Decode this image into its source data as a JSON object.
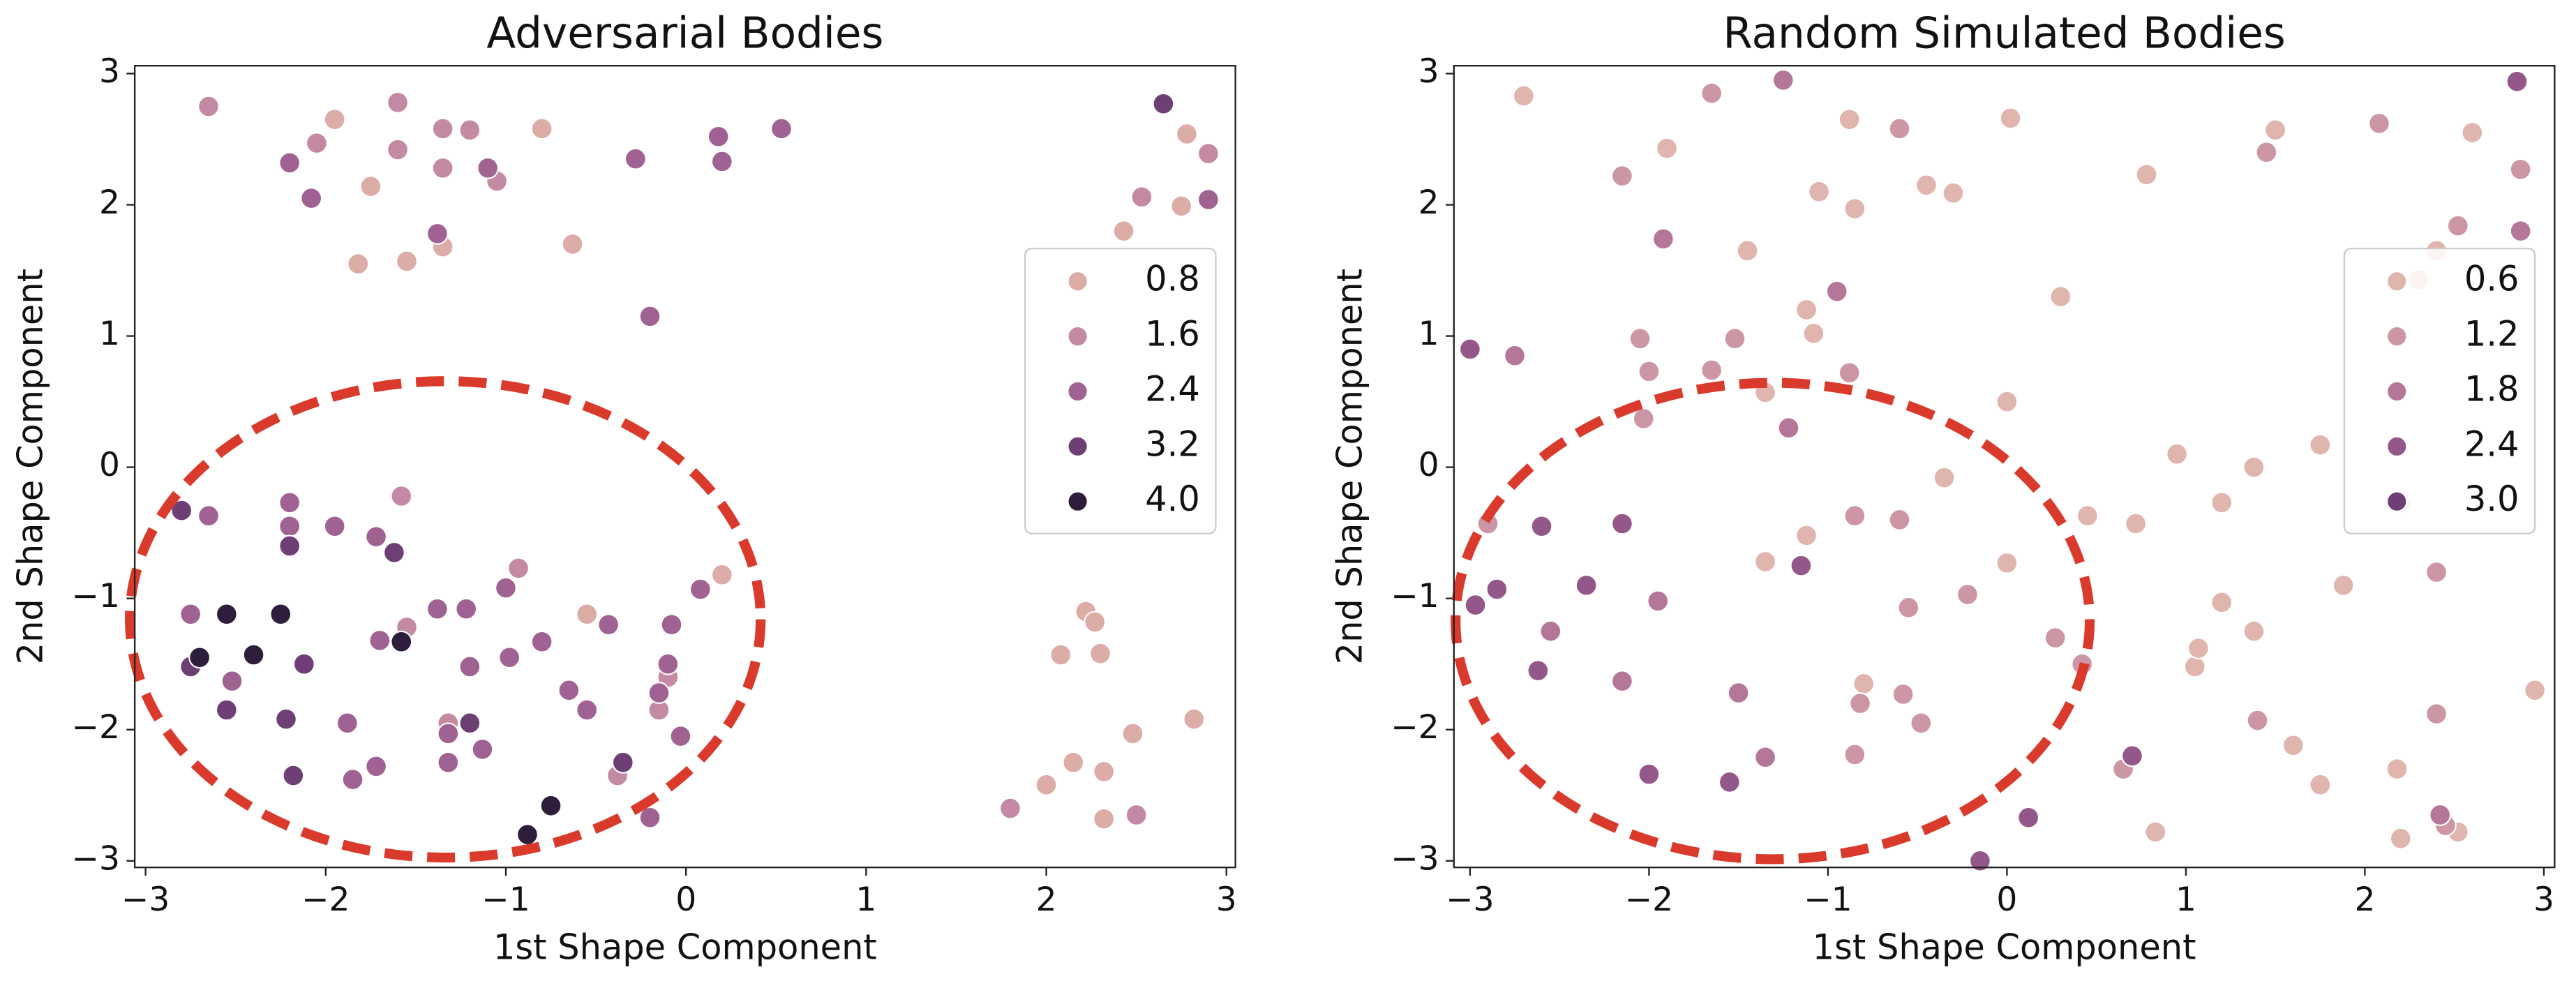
{
  "chart_data": [
    {
      "type": "scatter",
      "title": "Adversarial Bodies",
      "x_label": "1st Shape Component",
      "y_label": "2nd Shape Component",
      "xlim": [
        -3.06,
        3.05
      ],
      "ylim": [
        -3.05,
        3.06
      ],
      "xticks": [
        {
          "value": -3,
          "label": "−3"
        },
        {
          "value": -2,
          "label": "−2"
        },
        {
          "value": -1,
          "label": "−1"
        },
        0,
        1,
        2,
        3
      ],
      "yticks": [
        {
          "value": -3,
          "label": "−3"
        },
        {
          "value": -2,
          "label": "−2"
        },
        {
          "value": -1,
          "label": "−1"
        },
        0,
        1,
        2,
        3
      ],
      "legend": "center right",
      "grid": false,
      "series": [
        {
          "name": "0.8",
          "color": "#dcaca7",
          "x": [
            -1.95,
            -1.75,
            -0.8,
            -1.82,
            -1.55,
            -1.35,
            -0.63,
            2.78,
            2.75,
            2.43,
            -0.55,
            0.2,
            2.0,
            2.08,
            2.15,
            2.22,
            2.27,
            2.3,
            2.32,
            2.32,
            2.48,
            2.82
          ],
          "values": [
            2.65,
            2.14,
            2.58,
            1.55,
            1.57,
            1.68,
            1.7,
            2.54,
            1.99,
            1.8,
            -1.12,
            -0.82,
            -2.42,
            -1.43,
            -2.25,
            -1.1,
            -1.18,
            -1.42,
            -2.32,
            -2.68,
            -2.03,
            -1.92
          ]
        },
        {
          "name": "1.6",
          "color": "#c48aa3",
          "x": [
            -2.65,
            -2.05,
            -1.6,
            -1.6,
            -1.35,
            -1.35,
            -1.2,
            -1.05,
            2.9,
            2.53,
            -1.58,
            -1.55,
            -0.93,
            -1.32,
            -0.38,
            -0.15,
            -0.1,
            1.8,
            2.5
          ],
          "values": [
            2.75,
            2.47,
            2.78,
            2.42,
            2.58,
            2.28,
            2.57,
            2.18,
            2.39,
            2.06,
            -0.22,
            -1.22,
            -0.77,
            -1.95,
            -2.35,
            -1.85,
            -1.6,
            -2.6,
            -2.65
          ]
        },
        {
          "name": "2.4",
          "color": "#a06292",
          "x": [
            -2.2,
            -2.08,
            -1.1,
            -0.28,
            0.18,
            0.2,
            0.53,
            -1.38,
            -0.2,
            2.9,
            -2.65,
            -2.2,
            -2.2,
            -1.95,
            -1.72,
            -2.75,
            -2.52,
            -1.88,
            -1.72,
            -1.85,
            -1.7,
            -1.38,
            -1.22,
            -1.0,
            -1.2,
            -0.98,
            -0.8,
            -1.32,
            -1.32,
            -1.13,
            -0.65,
            -0.55,
            -0.43,
            -0.2,
            -0.15,
            -0.1,
            -0.08,
            -0.03,
            0.08
          ],
          "values": [
            2.32,
            2.05,
            2.28,
            2.35,
            2.52,
            2.33,
            2.58,
            1.78,
            1.15,
            2.04,
            -0.37,
            -0.27,
            -0.45,
            -0.45,
            -0.53,
            -1.12,
            -1.63,
            -1.95,
            -2.28,
            -2.38,
            -1.32,
            -1.08,
            -1.08,
            -0.92,
            -1.52,
            -1.45,
            -1.33,
            -2.03,
            -2.25,
            -2.15,
            -1.7,
            -1.85,
            -1.2,
            -2.67,
            -1.72,
            -1.5,
            -1.2,
            -2.05,
            -0.93
          ]
        },
        {
          "name": "3.2",
          "color": "#6e3f75",
          "x": [
            2.65,
            -2.8,
            -2.2,
            -1.62,
            -2.75,
            -2.12,
            -2.55,
            -2.22,
            -2.18,
            -1.2,
            -0.35
          ],
          "values": [
            2.77,
            -0.33,
            -0.6,
            -0.65,
            -1.52,
            -1.5,
            -1.85,
            -1.92,
            -2.35,
            -1.95,
            -2.25
          ]
        },
        {
          "name": "4.0",
          "color": "#2e1e3b",
          "x": [
            -2.55,
            -2.25,
            -2.7,
            -2.4,
            -1.58,
            -0.75,
            -0.88
          ],
          "values": [
            -1.12,
            -1.12,
            -1.45,
            -1.43,
            -1.33,
            -2.58,
            -2.8
          ]
        }
      ]
    },
    {
      "type": "scatter",
      "title": "Random Simulated Bodies",
      "x_label": "1st Shape Component",
      "y_label": "2nd Shape Component",
      "xlim": [
        -3.09,
        3.06
      ],
      "ylim": [
        -3.05,
        3.06
      ],
      "xticks": [
        {
          "value": -3,
          "label": "−3"
        },
        {
          "value": -2,
          "label": "−2"
        },
        {
          "value": -1,
          "label": "−1"
        },
        0,
        1,
        2,
        3
      ],
      "yticks": [
        {
          "value": -3,
          "label": "−3"
        },
        {
          "value": -2,
          "label": "−2"
        },
        {
          "value": -1,
          "label": "−1"
        },
        0,
        1,
        2,
        3
      ],
      "legend": "center right",
      "grid": false,
      "series": [
        {
          "name": "0.6",
          "color": "#e0b5ae",
          "x": [
            -2.7,
            -1.9,
            -1.45,
            -1.05,
            -0.88,
            -0.45,
            -0.3,
            0.02,
            -0.85,
            0.3,
            0.78,
            1.5,
            2.6,
            2.4,
            2.3,
            -1.12,
            -1.08,
            -1.35,
            0.0,
            0.95,
            1.75,
            1.38,
            1.2,
            2.2,
            -0.35,
            -1.12,
            0.45,
            0.72,
            -1.35,
            0.0,
            -0.8,
            0.83,
            1.05,
            1.07,
            1.2,
            1.38,
            1.6,
            1.75,
            1.88,
            2.18,
            2.2,
            2.52,
            2.95
          ],
          "values": [
            2.83,
            2.43,
            1.65,
            2.1,
            2.65,
            2.15,
            2.09,
            2.66,
            1.97,
            1.3,
            2.23,
            2.57,
            2.55,
            1.65,
            1.43,
            1.2,
            1.02,
            0.57,
            0.5,
            0.1,
            0.17,
            0.0,
            -0.27,
            -0.27,
            -0.08,
            -0.52,
            -0.37,
            -0.43,
            -0.72,
            -0.73,
            -1.65,
            -2.78,
            -1.52,
            -1.38,
            -1.03,
            -1.25,
            -2.12,
            -2.42,
            -0.9,
            -2.3,
            -2.83,
            -2.78,
            -1.7
          ]
        },
        {
          "name": "1.2",
          "color": "#cc96a5",
          "x": [
            -1.65,
            -2.15,
            -0.6,
            1.45,
            2.08,
            2.87,
            2.52,
            -1.52,
            -2.05,
            -2.0,
            -1.65,
            -0.88,
            -2.03,
            -2.9,
            -0.85,
            -0.6,
            -0.22,
            -0.55,
            -0.82,
            -0.58,
            -0.48,
            -0.85,
            0.27,
            0.42,
            0.65,
            1.4,
            2.4,
            2.45,
            2.4
          ],
          "values": [
            2.85,
            2.22,
            2.58,
            2.4,
            2.62,
            2.27,
            1.84,
            0.98,
            0.98,
            0.73,
            0.74,
            0.72,
            0.37,
            -0.43,
            -0.37,
            -0.4,
            -0.97,
            -1.07,
            -1.8,
            -1.73,
            -1.95,
            -2.19,
            -1.3,
            -1.5,
            -2.3,
            -1.93,
            -1.88,
            -2.73,
            -0.8
          ]
        },
        {
          "name": "1.8",
          "color": "#b47799",
          "x": [
            -1.25,
            -1.92,
            2.87,
            -2.75,
            -0.95,
            -1.22,
            -1.95,
            -2.55,
            -2.15,
            -1.5,
            -1.35,
            2.42
          ],
          "values": [
            2.95,
            1.74,
            1.8,
            0.85,
            1.34,
            0.3,
            -1.02,
            -1.25,
            -1.63,
            -1.72,
            -2.21,
            -2.65
          ]
        },
        {
          "name": "2.4",
          "color": "#935889",
          "x": [
            2.85,
            -3.0,
            -2.6,
            -2.15,
            -2.85,
            -2.97,
            -2.35,
            -1.15,
            -2.62,
            -2.0,
            -1.55,
            0.7,
            0.12,
            -0.15
          ],
          "values": [
            2.94,
            0.9,
            -0.45,
            -0.43,
            -0.93,
            -1.05,
            -0.9,
            -0.75,
            -1.55,
            -2.34,
            -2.4,
            -2.2,
            -2.67,
            -3.0
          ]
        },
        {
          "name": "3.0",
          "color": "#6e3f75",
          "x": [],
          "values": []
        }
      ]
    }
  ]
}
